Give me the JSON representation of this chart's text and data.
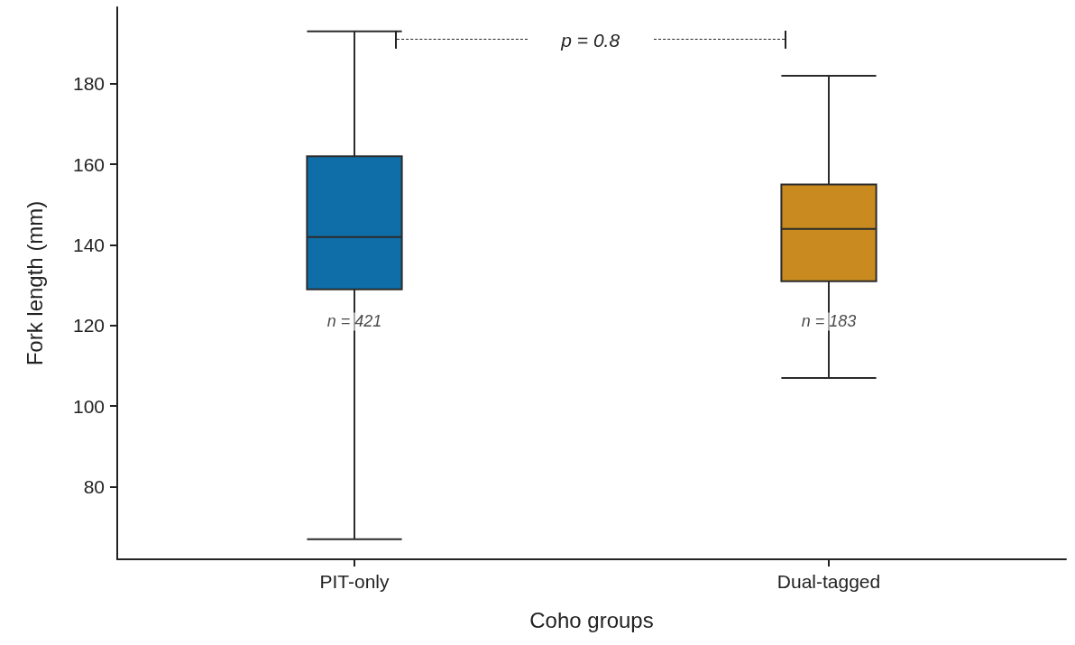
{
  "chart_data": {
    "type": "box",
    "xlabel": "Coho groups",
    "ylabel": "Fork length (mm)",
    "categories": [
      "PIT-only",
      "Dual-tagged"
    ],
    "boxes": [
      {
        "low": 67,
        "q1": 129,
        "median": 142,
        "q3": 162,
        "high": 193
      },
      {
        "low": 107,
        "q1": 131,
        "median": 144,
        "q3": 155,
        "high": 182
      }
    ],
    "colors": [
      "#0f6ea8",
      "#c98b1f"
    ],
    "ylim": [
      62,
      199
    ],
    "yticks": [
      80,
      100,
      120,
      140,
      160,
      180
    ],
    "grid": false,
    "annotations": [
      {
        "text": "n = 421",
        "x": "PIT-only",
        "y": 121
      },
      {
        "text": "n = 183",
        "x": "Dual-tagged",
        "y": 121
      },
      "p = 0.8"
    ]
  }
}
